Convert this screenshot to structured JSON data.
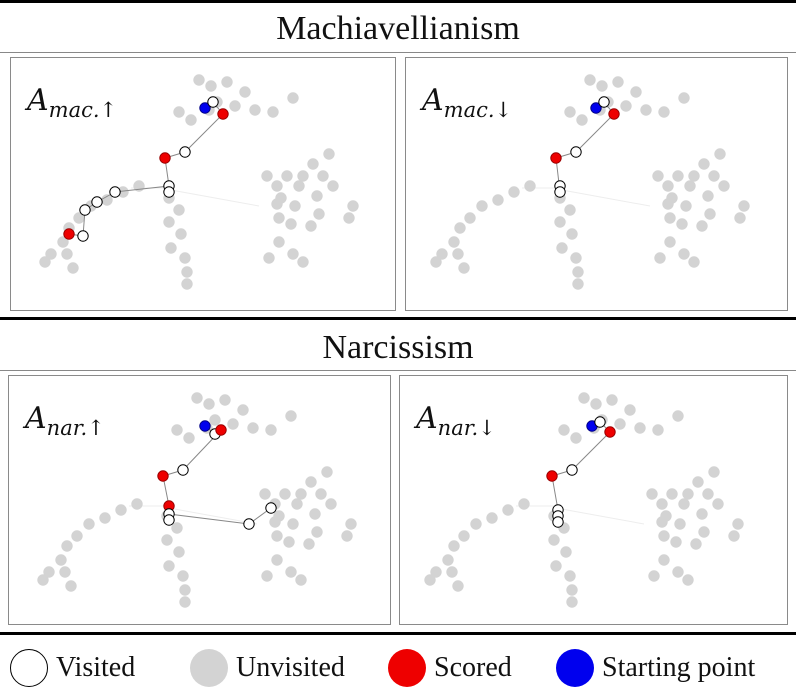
{
  "sections": [
    {
      "title": "Machiavellianism",
      "panels": [
        {
          "label_base": "A",
          "label_sub": "mac.↑",
          "highlight": "mac-up"
        },
        {
          "label_base": "A",
          "label_sub": "mac.↓",
          "highlight": "mac-down"
        }
      ]
    },
    {
      "title": "Narcissism",
      "panels": [
        {
          "label_base": "A",
          "label_sub": "nar.↑",
          "highlight": "nar-up"
        },
        {
          "label_base": "A",
          "label_sub": "nar.↓",
          "highlight": "nar-down"
        }
      ]
    }
  ],
  "legend": [
    {
      "label": "Visited",
      "fill": "#ffffff",
      "stroke": "#000000"
    },
    {
      "label": "Unvisited",
      "fill": "#d3d3d3",
      "stroke": "#d3d3d3"
    },
    {
      "label": "Scored",
      "fill": "#ee0000",
      "stroke": "#ee0000"
    },
    {
      "label": "Starting point",
      "fill": "#0000ee",
      "stroke": "#0000ee"
    }
  ],
  "colors": {
    "unvisited": "#d3d3d3",
    "visited_fill": "#ffffff",
    "visited_stroke": "#000000",
    "scored": "#ee0000",
    "start": "#0000ee",
    "path": "#888888"
  }
}
